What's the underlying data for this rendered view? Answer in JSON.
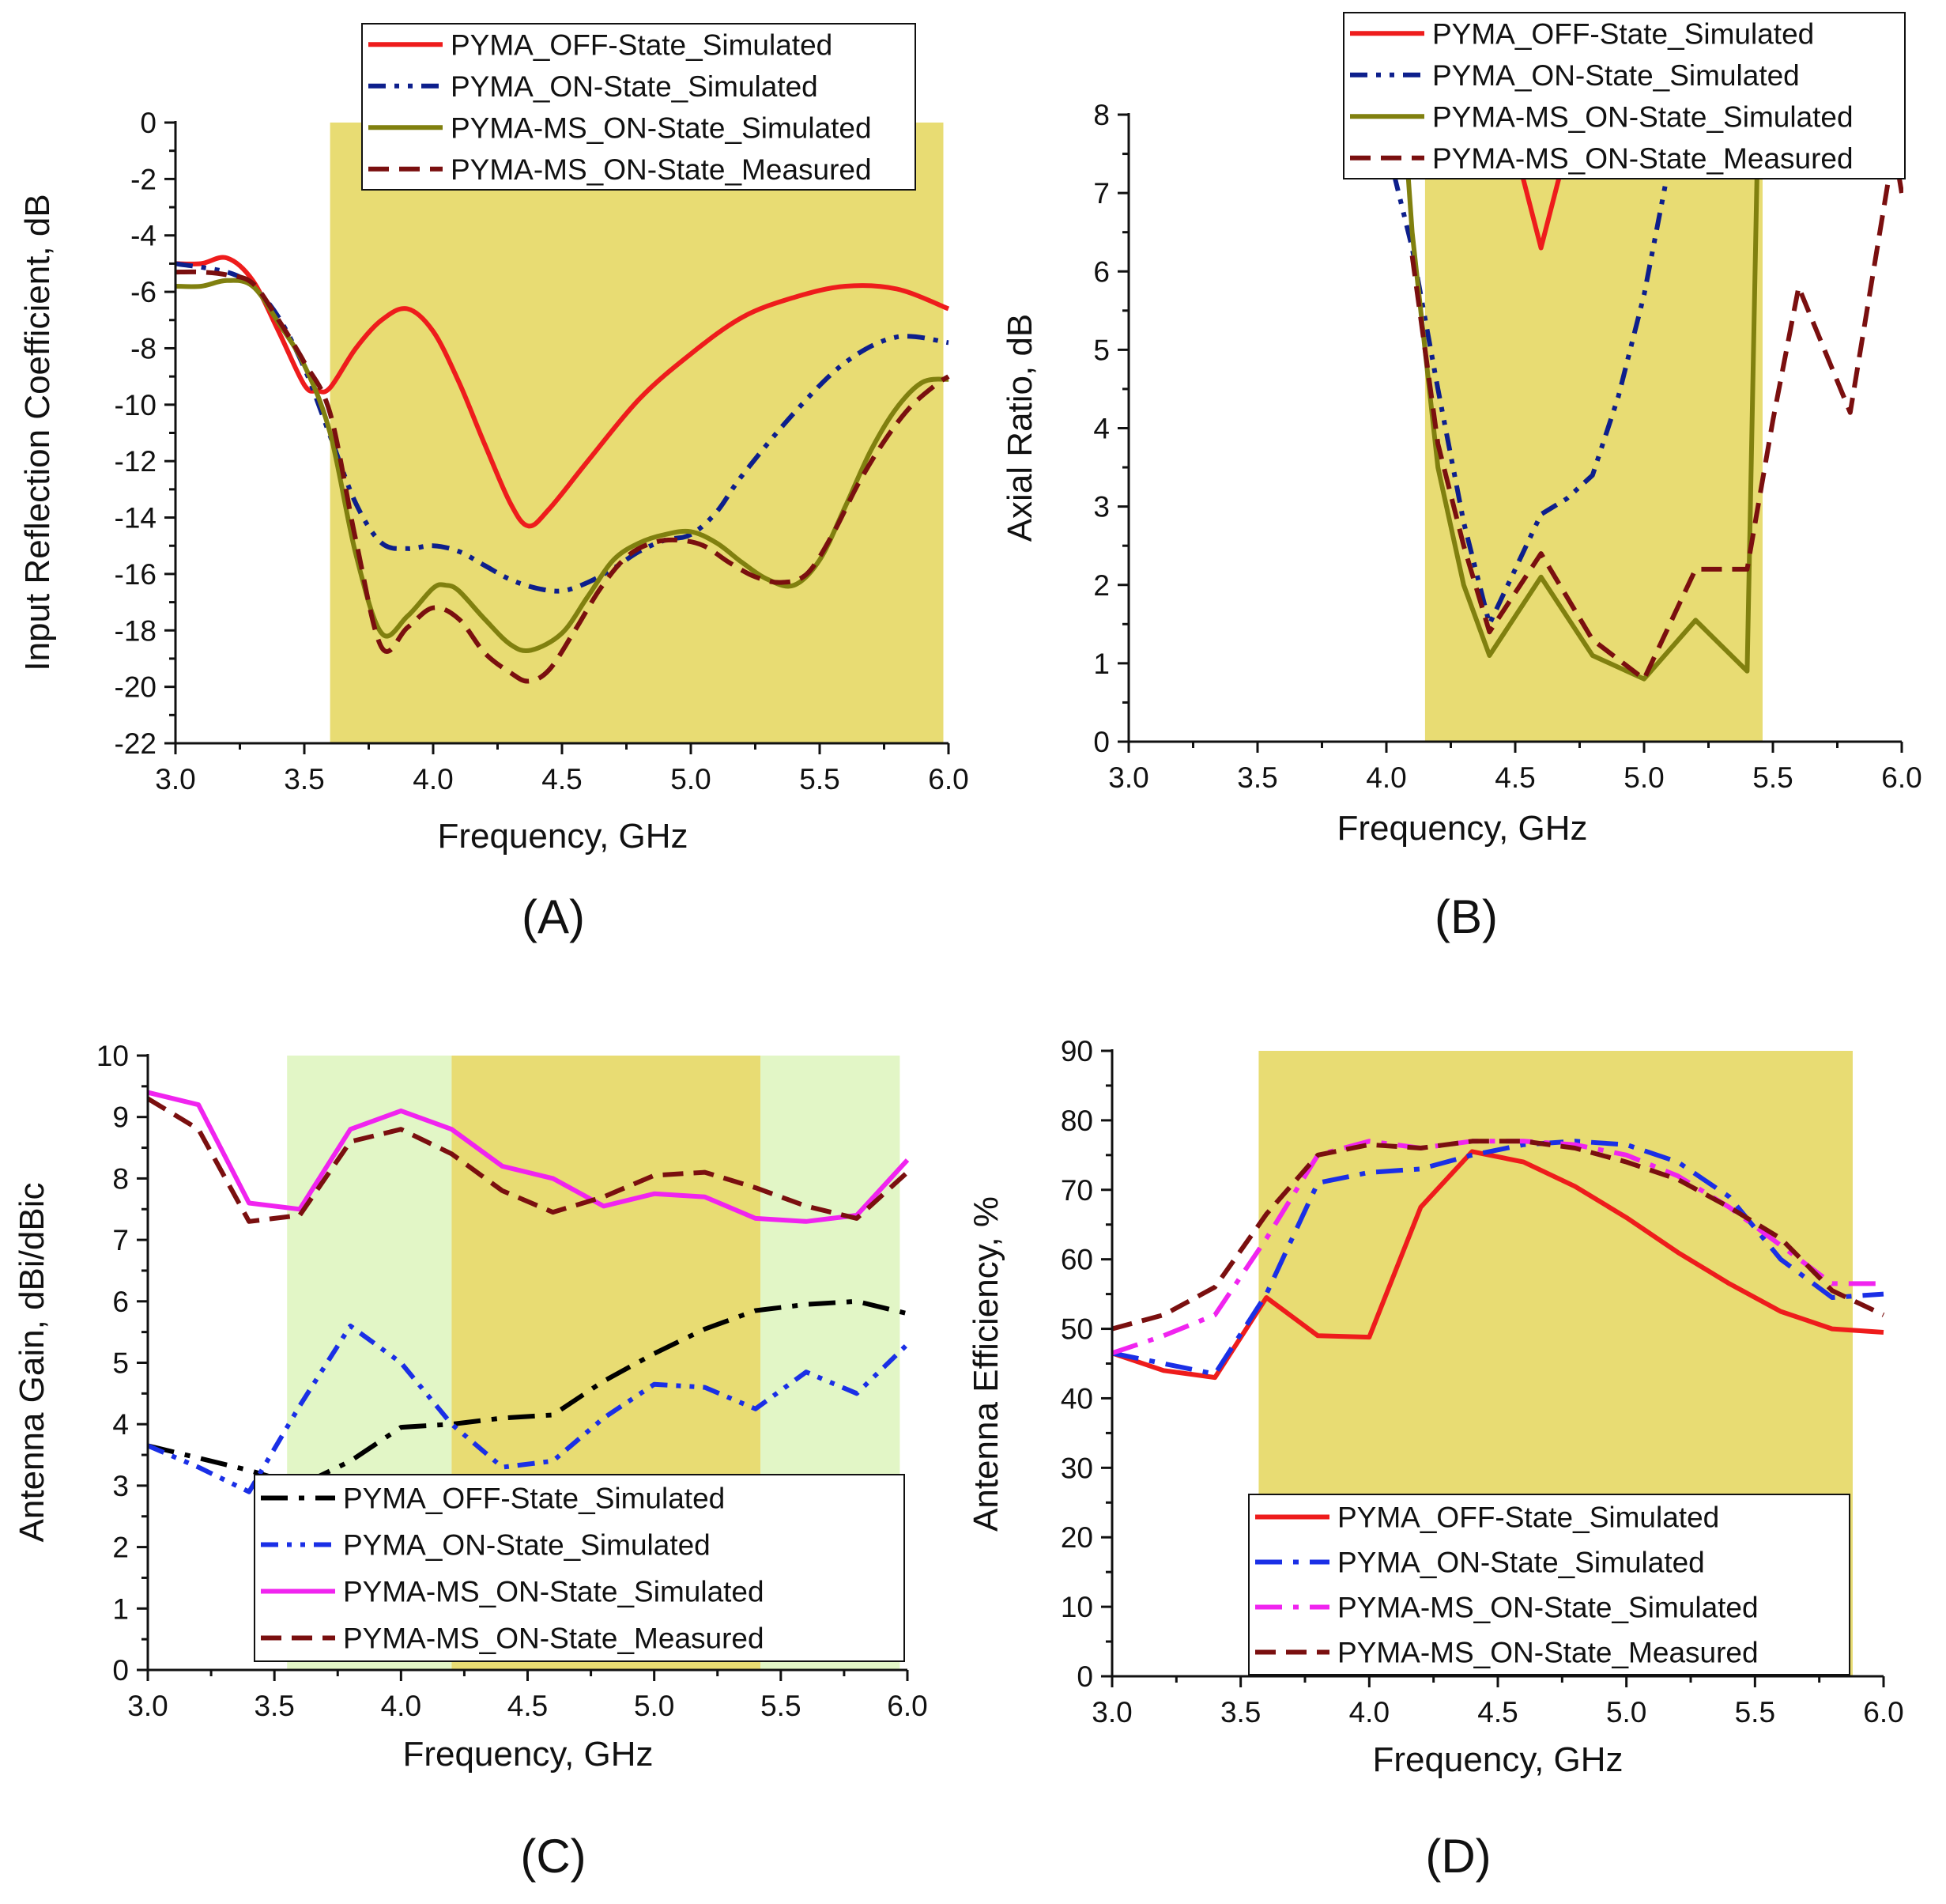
{
  "colors": {
    "off_sim_ab": "#ee1c1c",
    "on_sim_ab": "#0d1f8c",
    "ms_sim_ab": "#80800f",
    "ms_meas": "#7a0f0f",
    "off_sim_c": "#000000",
    "on_sim_cd": "#1a2fe6",
    "ms_sim_cd": "#f024ef",
    "off_sim_d": "#ee1c1c",
    "band_yellow": "#e8dc73",
    "band_green": "#e2f6c6"
  },
  "chart_data": [
    {
      "id": "A",
      "type": "line",
      "caption": "(A)",
      "xlabel": "Frequency, GHz",
      "ylabel": "Input Reflection Coefficient, dB",
      "xlim": [
        3.0,
        6.0
      ],
      "ylim": [
        -22,
        0
      ],
      "xticks": [
        3.0,
        3.5,
        4.0,
        4.5,
        5.0,
        5.5,
        6.0
      ],
      "yticks": [
        0,
        -2,
        -4,
        -6,
        -8,
        -10,
        -12,
        -14,
        -16,
        -18,
        -20,
        -22
      ],
      "xtick_labels": [
        "3.0",
        "3.5",
        "4.0",
        "4.5",
        "5.0",
        "5.5",
        "6.0"
      ],
      "ytick_labels": [
        "0",
        "-2",
        "-4",
        "-6",
        "-8",
        "-10",
        "-12",
        "-14",
        "-16",
        "-18",
        "-20",
        "-22"
      ],
      "grid": false,
      "legend_position": "top-center",
      "bands": [
        {
          "from": 3.6,
          "to": 5.98,
          "color": "band_yellow"
        }
      ],
      "series": [
        {
          "name": "PYMA_OFF-State_Simulated",
          "style": "solid",
          "color": "off_sim_ab",
          "smooth": true,
          "x": [
            3.0,
            3.1,
            3.2,
            3.3,
            3.4,
            3.5,
            3.55,
            3.6,
            3.7,
            3.8,
            3.9,
            4.0,
            4.1,
            4.2,
            4.3,
            4.37,
            4.45,
            4.6,
            4.8,
            5.0,
            5.2,
            5.4,
            5.6,
            5.8,
            6.0
          ],
          "y": [
            -5.0,
            -5.0,
            -4.8,
            -5.6,
            -7.4,
            -9.3,
            -9.5,
            -9.4,
            -8.0,
            -7.0,
            -6.6,
            -7.4,
            -9.2,
            -11.4,
            -13.5,
            -14.3,
            -13.7,
            -12.0,
            -9.8,
            -8.2,
            -6.9,
            -6.2,
            -5.8,
            -5.9,
            -6.6
          ]
        },
        {
          "name": "PYMA_ON-State_Simulated",
          "style": "dashdotdot",
          "color": "on_sim_ab",
          "smooth": true,
          "x": [
            3.0,
            3.2,
            3.3,
            3.4,
            3.5,
            3.6,
            3.7,
            3.8,
            3.9,
            4.0,
            4.1,
            4.2,
            4.3,
            4.4,
            4.5,
            4.6,
            4.7,
            4.8,
            4.9,
            5.0,
            5.1,
            5.2,
            5.4,
            5.6,
            5.8,
            6.0
          ],
          "y": [
            -5.0,
            -5.3,
            -5.8,
            -6.9,
            -8.7,
            -11.1,
            -13.5,
            -14.9,
            -15.1,
            -15.0,
            -15.2,
            -15.7,
            -16.2,
            -16.5,
            -16.6,
            -16.3,
            -15.8,
            -15.2,
            -14.8,
            -14.6,
            -13.8,
            -12.5,
            -10.3,
            -8.5,
            -7.6,
            -7.8
          ]
        },
        {
          "name": "PYMA-MS_ON-State_Simulated",
          "style": "solid",
          "color": "ms_sim_ab",
          "smooth": true,
          "x": [
            3.0,
            3.1,
            3.2,
            3.3,
            3.4,
            3.5,
            3.6,
            3.7,
            3.8,
            3.9,
            4.0,
            4.05,
            4.1,
            4.2,
            4.3,
            4.38,
            4.5,
            4.6,
            4.7,
            4.8,
            4.9,
            5.0,
            5.1,
            5.2,
            5.3,
            5.4,
            5.5,
            5.6,
            5.7,
            5.8,
            5.9,
            6.0
          ],
          "y": [
            -5.8,
            -5.8,
            -5.6,
            -5.8,
            -7.1,
            -8.6,
            -11.0,
            -15.3,
            -18.1,
            -17.5,
            -16.5,
            -16.4,
            -16.6,
            -17.6,
            -18.5,
            -18.7,
            -18.1,
            -16.8,
            -15.5,
            -14.9,
            -14.6,
            -14.5,
            -14.9,
            -15.6,
            -16.2,
            -16.4,
            -15.5,
            -13.6,
            -11.6,
            -10.1,
            -9.2,
            -9.1
          ]
        },
        {
          "name": "PYMA-MS_ON-State_Measured",
          "style": "dashed",
          "color": "ms_meas",
          "smooth": true,
          "x": [
            3.0,
            3.1,
            3.2,
            3.3,
            3.4,
            3.5,
            3.6,
            3.7,
            3.8,
            3.9,
            4.0,
            4.1,
            4.2,
            4.3,
            4.37,
            4.45,
            4.55,
            4.65,
            4.75,
            4.85,
            4.95,
            5.05,
            5.15,
            5.25,
            5.35,
            5.45,
            5.55,
            5.65,
            5.75,
            5.85,
            5.95,
            6.0
          ],
          "y": [
            -5.3,
            -5.3,
            -5.4,
            -5.7,
            -7.0,
            -8.5,
            -10.3,
            -14.8,
            -18.6,
            -17.9,
            -17.2,
            -17.6,
            -18.8,
            -19.5,
            -19.8,
            -19.4,
            -18.0,
            -16.5,
            -15.4,
            -14.9,
            -14.8,
            -15.0,
            -15.6,
            -16.1,
            -16.3,
            -16.0,
            -14.6,
            -12.8,
            -11.3,
            -10.1,
            -9.3,
            -9.0
          ]
        }
      ]
    },
    {
      "id": "B",
      "type": "line",
      "caption": "(B)",
      "xlabel": "Frequency, GHz",
      "ylabel": "Axial Ratio, dB",
      "xlim": [
        3.0,
        6.0
      ],
      "ylim": [
        0,
        8
      ],
      "xticks": [
        3.0,
        3.5,
        4.0,
        4.5,
        5.0,
        5.5,
        6.0
      ],
      "yticks": [
        0,
        1,
        2,
        3,
        4,
        5,
        6,
        7,
        8
      ],
      "xtick_labels": [
        "3.0",
        "3.5",
        "4.0",
        "4.5",
        "5.0",
        "5.5",
        "6.0"
      ],
      "ytick_labels": [
        "0",
        "1",
        "2",
        "3",
        "4",
        "5",
        "6",
        "7",
        "8"
      ],
      "grid": false,
      "legend_position": "top-right",
      "bands": [
        {
          "from": 4.15,
          "to": 5.46,
          "color": "band_yellow"
        }
      ],
      "series": [
        {
          "name": "PYMA_OFF-State_Simulated",
          "style": "solid",
          "color": "off_sim_ab",
          "x": [
            4.42,
            4.6,
            4.78
          ],
          "y": [
            8.6,
            6.3,
            8.6
          ]
        },
        {
          "name": "PYMA_ON-State_Simulated",
          "style": "dashdotdot",
          "color": "on_sim_ab",
          "x": [
            3.98,
            4.1,
            4.2,
            4.3,
            4.4,
            4.5,
            4.6,
            4.7,
            4.8,
            4.9,
            5.0,
            5.1,
            5.14
          ],
          "y": [
            7.9,
            6.3,
            4.5,
            2.8,
            1.5,
            2.2,
            2.9,
            3.1,
            3.4,
            4.4,
            5.7,
            7.4,
            8.2
          ]
        },
        {
          "name": "PYMA-MS_ON-State_Simulated",
          "style": "solid",
          "color": "ms_sim_ab",
          "x": [
            4.07,
            4.1,
            4.2,
            4.3,
            4.4,
            4.6,
            4.8,
            5.0,
            5.2,
            5.4,
            5.44,
            5.45
          ],
          "y": [
            7.9,
            6.5,
            3.5,
            2.0,
            1.1,
            2.1,
            1.1,
            0.8,
            1.55,
            0.9,
            7.5,
            8.1
          ]
        },
        {
          "name": "PYMA-MS_ON-State_Measured",
          "style": "dashed",
          "color": "ms_meas",
          "x": [
            4.1,
            4.2,
            4.3,
            4.4,
            4.6,
            4.8,
            5.0,
            5.2,
            5.4,
            5.5,
            5.6,
            5.8,
            5.97,
            6.0
          ],
          "y": [
            6.2,
            3.8,
            2.5,
            1.4,
            2.4,
            1.3,
            0.8,
            2.2,
            2.2,
            4.1,
            5.8,
            4.2,
            7.6,
            7.0
          ]
        }
      ]
    },
    {
      "id": "C",
      "type": "line",
      "caption": "(C)",
      "xlabel": "Frequency, GHz",
      "ylabel": "Antenna Gain, dBi/dBic",
      "xlim": [
        3.0,
        6.0
      ],
      "ylim": [
        0,
        10
      ],
      "xticks": [
        3.0,
        3.5,
        4.0,
        4.5,
        5.0,
        5.5,
        6.0
      ],
      "yticks": [
        0,
        1,
        2,
        3,
        4,
        5,
        6,
        7,
        8,
        9,
        10
      ],
      "xtick_labels": [
        "3.0",
        "3.5",
        "4.0",
        "4.5",
        "5.0",
        "5.5",
        "6.0"
      ],
      "ytick_labels": [
        "0",
        "1",
        "2",
        "3",
        "4",
        "5",
        "6",
        "7",
        "8",
        "9",
        "10"
      ],
      "grid": false,
      "legend_position": "bottom-center",
      "bands": [
        {
          "from": 3.55,
          "to": 4.2,
          "color": "band_green"
        },
        {
          "from": 4.2,
          "to": 5.42,
          "color": "band_yellow"
        },
        {
          "from": 5.42,
          "to": 5.97,
          "color": "band_green"
        }
      ],
      "series": [
        {
          "name": "PYMA_OFF-State_Simulated",
          "style": "dashdot",
          "color": "off_sim_c",
          "x": [
            3.0,
            3.2,
            3.4,
            3.6,
            3.8,
            4.0,
            4.2,
            4.4,
            4.6,
            4.8,
            5.0,
            5.2,
            5.4,
            5.6,
            5.8,
            6.0
          ],
          "y": [
            3.65,
            3.45,
            3.25,
            3.0,
            3.4,
            3.95,
            4.0,
            4.1,
            4.15,
            4.7,
            5.15,
            5.55,
            5.85,
            5.95,
            6.0,
            5.8
          ]
        },
        {
          "name": "PYMA_ON-State_Simulated",
          "style": "dashdotdot",
          "color": "on_sim_cd",
          "x": [
            3.0,
            3.2,
            3.4,
            3.6,
            3.8,
            4.0,
            4.2,
            4.4,
            4.6,
            4.8,
            5.0,
            5.2,
            5.4,
            5.6,
            5.8,
            6.0
          ],
          "y": [
            3.65,
            3.3,
            2.9,
            4.3,
            5.6,
            5.0,
            4.0,
            3.3,
            3.4,
            4.1,
            4.65,
            4.6,
            4.25,
            4.85,
            4.5,
            5.3
          ]
        },
        {
          "name": "PYMA-MS_ON-State_Simulated",
          "style": "solid",
          "color": "ms_sim_cd",
          "x": [
            3.0,
            3.2,
            3.4,
            3.6,
            3.8,
            4.0,
            4.2,
            4.4,
            4.6,
            4.8,
            5.0,
            5.2,
            5.4,
            5.6,
            5.8,
            6.0
          ],
          "y": [
            9.4,
            9.2,
            7.6,
            7.5,
            8.8,
            9.1,
            8.8,
            8.2,
            8.0,
            7.55,
            7.75,
            7.7,
            7.35,
            7.3,
            7.4,
            8.3
          ]
        },
        {
          "name": "PYMA-MS_ON-State_Measured",
          "style": "dashed",
          "color": "ms_meas",
          "x": [
            3.0,
            3.2,
            3.4,
            3.6,
            3.8,
            4.0,
            4.2,
            4.4,
            4.6,
            4.8,
            5.0,
            5.2,
            5.4,
            5.6,
            5.8,
            6.0
          ],
          "y": [
            9.3,
            8.8,
            7.3,
            7.4,
            8.6,
            8.8,
            8.4,
            7.8,
            7.45,
            7.7,
            8.05,
            8.1,
            7.85,
            7.55,
            7.35,
            8.1
          ]
        }
      ]
    },
    {
      "id": "D",
      "type": "line",
      "caption": "(D)",
      "xlabel": "Frequency, GHz",
      "ylabel": "Antenna Efficiency, %",
      "xlim": [
        3.0,
        6.0
      ],
      "ylim": [
        0,
        90
      ],
      "xticks": [
        3.0,
        3.5,
        4.0,
        4.5,
        5.0,
        5.5,
        6.0
      ],
      "yticks": [
        0,
        10,
        20,
        30,
        40,
        50,
        60,
        70,
        80,
        90
      ],
      "xtick_labels": [
        "3.0",
        "3.5",
        "4.0",
        "4.5",
        "5.0",
        "5.5",
        "6.0"
      ],
      "ytick_labels": [
        "0",
        "10",
        "20",
        "30",
        "40",
        "50",
        "60",
        "70",
        "80",
        "90"
      ],
      "grid": false,
      "legend_position": "bottom-center",
      "bands": [
        {
          "from": 3.57,
          "to": 5.88,
          "color": "band_yellow"
        }
      ],
      "series": [
        {
          "name": "PYMA_OFF-State_Simulated",
          "style": "solid",
          "color": "off_sim_d",
          "x": [
            3.0,
            3.2,
            3.4,
            3.6,
            3.8,
            4.0,
            4.2,
            4.4,
            4.6,
            4.8,
            5.0,
            5.2,
            5.4,
            5.6,
            5.8,
            6.0
          ],
          "y": [
            46.5,
            44.0,
            43.0,
            54.5,
            49.0,
            48.8,
            67.5,
            75.5,
            74.0,
            70.5,
            66.0,
            61.0,
            56.5,
            52.5,
            50.0,
            49.5
          ]
        },
        {
          "name": "PYMA_ON-State_Simulated",
          "style": "dashdot",
          "color": "on_sim_cd",
          "x": [
            3.0,
            3.2,
            3.4,
            3.6,
            3.8,
            4.0,
            4.2,
            4.4,
            4.6,
            4.8,
            5.0,
            5.2,
            5.4,
            5.6,
            5.8,
            6.0
          ],
          "y": [
            46.5,
            45.0,
            43.5,
            55.0,
            71.0,
            72.5,
            73.0,
            75.0,
            76.5,
            77.0,
            76.5,
            74.0,
            69.0,
            60.0,
            54.5,
            55.0
          ]
        },
        {
          "name": "PYMA-MS_ON-State_Simulated",
          "style": "dashdot",
          "color": "ms_sim_cd",
          "x": [
            3.0,
            3.2,
            3.4,
            3.6,
            3.8,
            4.0,
            4.2,
            4.4,
            4.6,
            4.8,
            5.0,
            5.2,
            5.4,
            5.6,
            5.8,
            6.0
          ],
          "y": [
            46.5,
            49.0,
            52.0,
            63.0,
            75.0,
            77.0,
            76.0,
            77.0,
            77.0,
            76.5,
            75.0,
            72.0,
            67.5,
            62.0,
            56.5,
            56.5
          ]
        },
        {
          "name": "PYMA-MS_ON-State_Measured",
          "style": "dashed",
          "color": "ms_meas",
          "x": [
            3.0,
            3.2,
            3.4,
            3.6,
            3.8,
            4.0,
            4.2,
            4.4,
            4.6,
            4.8,
            5.0,
            5.2,
            5.4,
            5.6,
            5.8,
            6.0
          ],
          "y": [
            50.0,
            52.0,
            56.0,
            66.5,
            75.0,
            76.5,
            76.0,
            77.0,
            77.0,
            76.0,
            74.0,
            71.5,
            67.5,
            63.0,
            55.5,
            52.0
          ]
        }
      ]
    }
  ]
}
